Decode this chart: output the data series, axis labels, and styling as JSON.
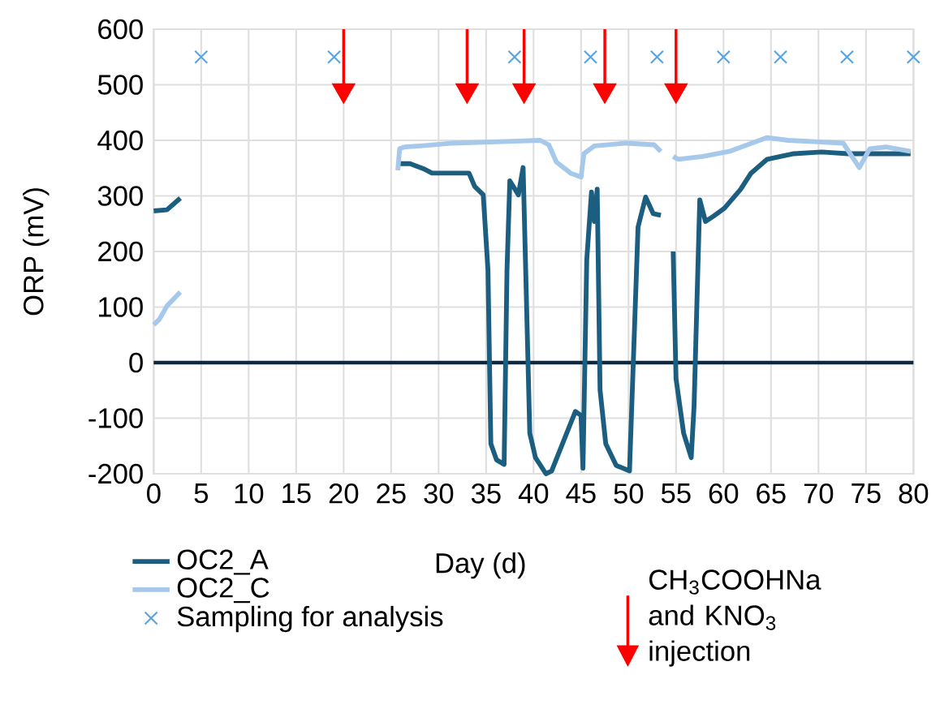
{
  "chart_data": {
    "type": "line",
    "xlabel": "Day (d)",
    "ylabel": "ORP (mV)",
    "xlim": [
      0,
      80
    ],
    "xticks": [
      0,
      5,
      10,
      15,
      20,
      25,
      30,
      35,
      40,
      45,
      50,
      55,
      60,
      65,
      70,
      75,
      80
    ],
    "ylim": [
      -200,
      600
    ],
    "yticks": [
      -200,
      -100,
      0,
      100,
      200,
      300,
      400,
      500,
      600
    ],
    "grid": true,
    "legend": "bottom",
    "ref_lines": [
      {
        "axis": "y",
        "value": 0,
        "color": "#0e2841"
      }
    ],
    "series": [
      {
        "name": "OC2_A",
        "color": "#1b5e80",
        "x": [
          0,
          1.4,
          2.8,
          3.5,
          25.9,
          27,
          28.4,
          29.3,
          33.2,
          33.8,
          34.7,
          35.2,
          35.5,
          36.1,
          36.9,
          37.2,
          37.5,
          38.4,
          38.9,
          39.6,
          40.2,
          41.3,
          41.9,
          44.4,
          45,
          45.2,
          45.6,
          46.1,
          46.4,
          46.7,
          47,
          47.6,
          48.7,
          50.1,
          51,
          51.8,
          52.6,
          53.4,
          54,
          54.7,
          55,
          55.8,
          56.6,
          56.9,
          57.5,
          58.1,
          58.9,
          60.1,
          61.8,
          62.9,
          64.6,
          67.4,
          70.3,
          73.1,
          75.4,
          79.7
        ],
        "values": [
          273,
          275,
          296,
          null,
          358,
          358,
          349,
          341,
          341,
          317,
          302,
          166,
          -146,
          -175,
          -183,
          166,
          327,
          302,
          351,
          -127,
          -171,
          -200,
          -195,
          -88,
          -95,
          -190,
          185,
          307,
          254,
          312,
          -49,
          -146,
          -185,
          -195,
          244,
          298,
          268,
          265,
          null,
          200,
          -29,
          -127,
          -171,
          -78,
          293,
          254,
          263,
          278,
          312,
          341,
          366,
          376,
          379,
          376,
          376,
          376
        ]
      },
      {
        "name": "OC2_C",
        "color": "#a6c8ea",
        "x": [
          0,
          0.6,
          1.4,
          2.8,
          3.5,
          25.7,
          25.9,
          26.4,
          28.1,
          31.5,
          37.2,
          40.7,
          41.6,
          42.4,
          43.9,
          45,
          45.3,
          46.4,
          49.8,
          52.7,
          53.4,
          54,
          54.7,
          55.2,
          57.8,
          60.6,
          64.6,
          66.8,
          72.6,
          74.3,
          75.4,
          77.1,
          79.7
        ],
        "values": [
          68,
          78,
          102,
          127,
          null,
          346,
          385,
          388,
          390,
          395,
          398,
          400,
          392,
          361,
          341,
          334,
          376,
          390,
          395,
          392,
          380,
          null,
          371,
          366,
          371,
          380,
          405,
          400,
          395,
          351,
          385,
          388,
          380
        ]
      },
      {
        "name": "Sampling for analysis",
        "type": "scatter",
        "marker": "cross",
        "color": "#5ba3e0",
        "x": [
          5,
          19,
          38,
          46,
          53,
          60,
          66,
          73,
          80
        ],
        "values": [
          550,
          550,
          550,
          550,
          550,
          550,
          550,
          550,
          550
        ]
      },
      {
        "name": "CH$_{3}$COOHNa and KNO$_{3}$ injection",
        "type": "scatter",
        "marker": "triangle",
        "color": "#ff0000",
        "x": [
          20,
          33,
          39,
          47.5,
          55
        ],
        "values": [
          490,
          490,
          490,
          490,
          490
        ],
        "errors": [
          [
            490,
            600
          ],
          [
            490,
            600
          ],
          [
            490,
            600
          ],
          [
            490,
            600
          ],
          [
            490,
            600
          ]
        ]
      }
    ]
  }
}
